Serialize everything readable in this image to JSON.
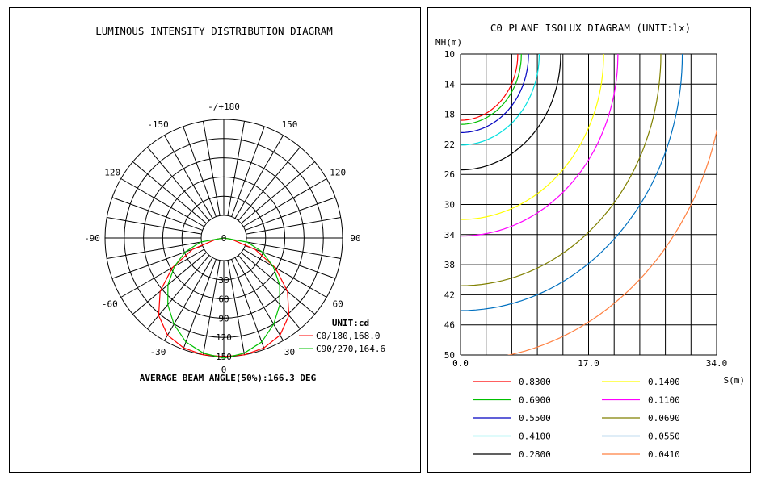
{
  "chart_data": [
    {
      "type": "polar",
      "title": "LUMINOUS INTENSITY DISTRIBUTION DIAGRAM",
      "angle_labels": [
        "-/+180",
        "-150",
        "150",
        "-120",
        "120",
        "-90",
        "90",
        "-60",
        "60",
        "-30",
        "30",
        "0"
      ],
      "radial_labels": [
        "0",
        "30",
        "60",
        "90",
        "120",
        "150"
      ],
      "radial_max": 150,
      "unit_label": "UNIT:cd",
      "series": [
        {
          "name": "C0/180,168.0",
          "color": "#ff0000",
          "angles": [
            0,
            10,
            20,
            30,
            40,
            50,
            60,
            70,
            80,
            90
          ],
          "values": [
            150,
            150,
            148,
            142,
            128,
            105,
            75,
            42,
            10,
            0
          ]
        },
        {
          "name": "C90/270,164.6",
          "color": "#00c000",
          "angles": [
            0,
            10,
            20,
            30,
            40,
            50,
            60,
            70,
            80,
            90
          ],
          "values": [
            152,
            148,
            140,
            126,
            110,
            92,
            72,
            52,
            30,
            0
          ]
        }
      ],
      "footer": "AVERAGE BEAM ANGLE(50%):166.3 DEG"
    },
    {
      "type": "line",
      "title": "C0 PLANE ISOLUX DIAGRAM (UNIT:lx)",
      "xlabel": "S(m)",
      "ylabel": "MH(m)",
      "x_ticks": [
        "0.0",
        "17.0",
        "34.0"
      ],
      "y_ticks": [
        "10",
        "14",
        "18",
        "22",
        "26",
        "30",
        "34",
        "38",
        "42",
        "46",
        "50"
      ],
      "xlim": [
        0,
        34
      ],
      "ylim": [
        10,
        50
      ],
      "series": [
        {
          "name": "0.8300",
          "color": "#ff0000",
          "radius": 8.0
        },
        {
          "name": "0.6900",
          "color": "#00c000",
          "radius": 8.5
        },
        {
          "name": "0.5500",
          "color": "#0000c0",
          "radius": 9.5
        },
        {
          "name": "0.4100",
          "color": "#00e0e0",
          "radius": 11.0
        },
        {
          "name": "0.2800",
          "color": "#000000",
          "radius": 14.0
        },
        {
          "name": "0.1400",
          "color": "#ffff00",
          "radius": 20.0
        },
        {
          "name": "0.1100",
          "color": "#ff00ff",
          "radius": 22.0
        },
        {
          "name": "0.0690",
          "color": "#808000",
          "radius": 28.0
        },
        {
          "name": "0.0550",
          "color": "#0070c0",
          "radius": 31.0
        },
        {
          "name": "0.0410",
          "color": "#ff8040",
          "radius": 37.0
        }
      ]
    }
  ]
}
